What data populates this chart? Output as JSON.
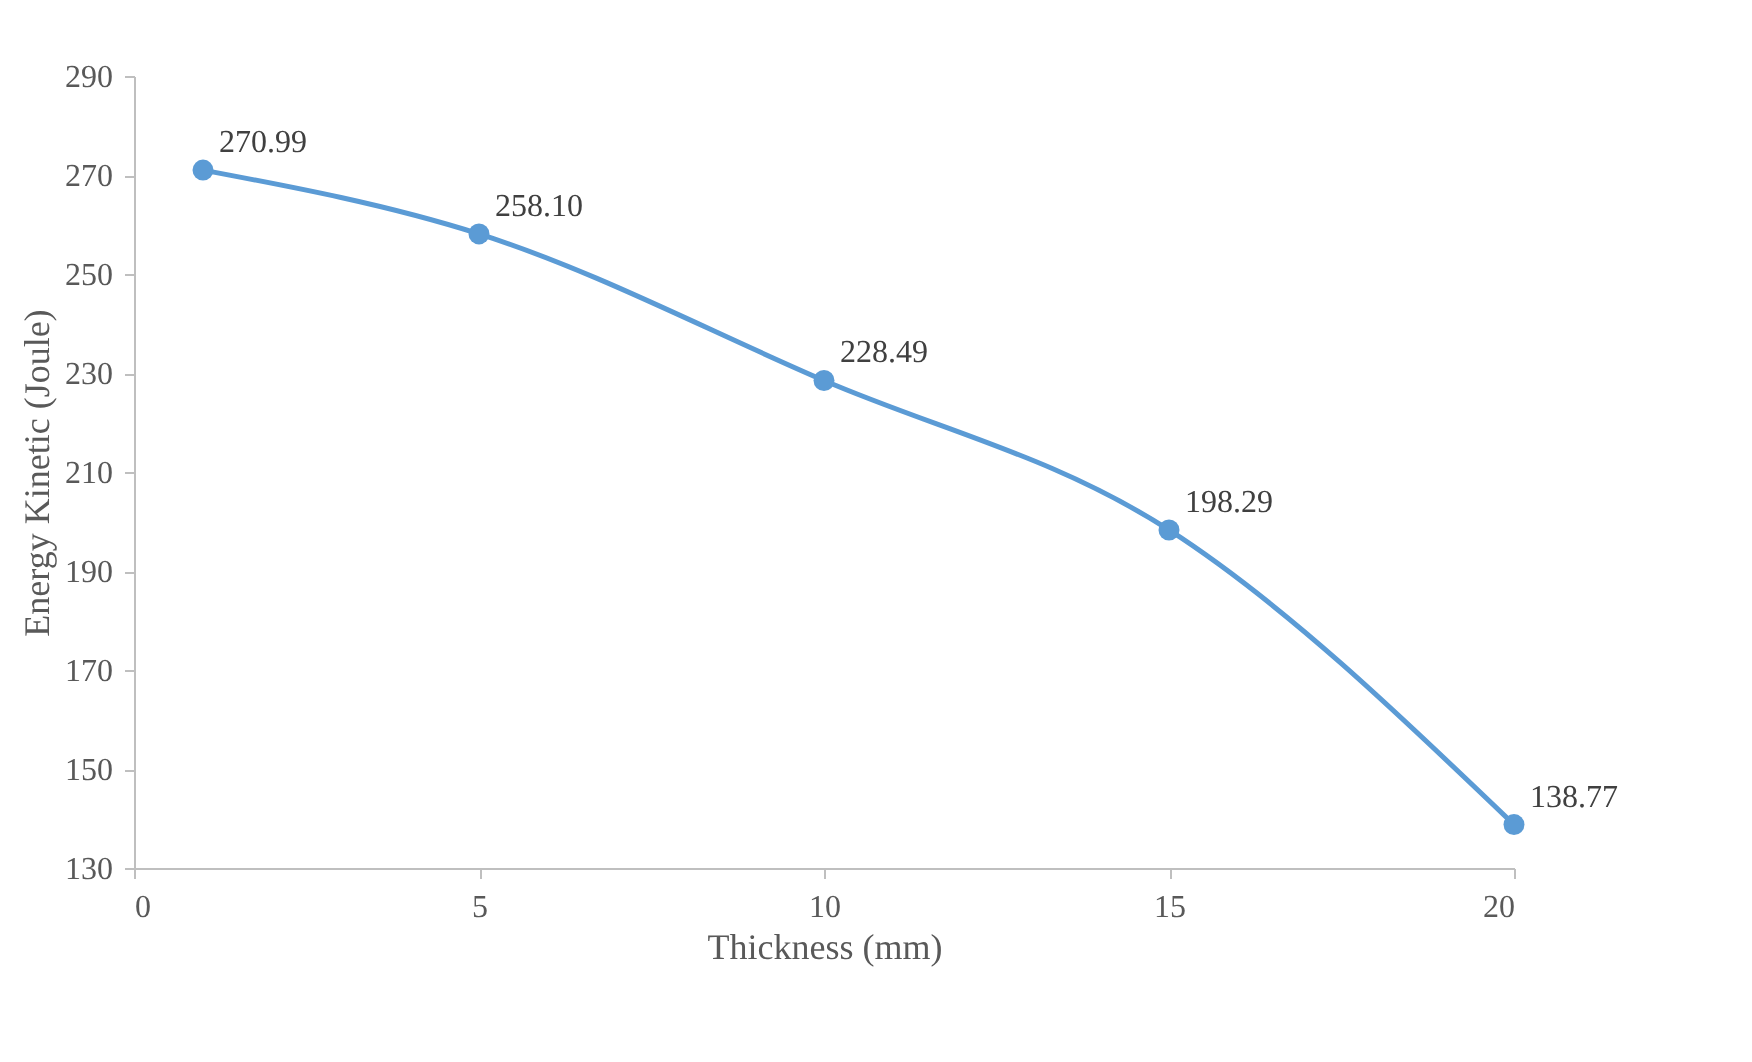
{
  "chart_data": {
    "type": "line",
    "xlabel": "Thickness (mm)",
    "ylabel": "Energy Kinetic (Joule)",
    "x": [
      1,
      5,
      10,
      15,
      20
    ],
    "series": [
      {
        "color": "#5b9bd5",
        "values": [
          270.99,
          258.1,
          228.49,
          198.29,
          138.77
        ],
        "value_labels": [
          "270.99",
          "258.10",
          "228.49",
          "198.29",
          "138.77"
        ]
      }
    ],
    "xlim": [
      0,
      20
    ],
    "xticks": [
      0,
      5,
      10,
      15,
      20
    ],
    "ylim": [
      130,
      290
    ],
    "yticks": [
      130,
      150,
      170,
      190,
      210,
      230,
      250,
      270,
      290
    ],
    "grid": false,
    "marker": "circle",
    "line_style": "solid"
  }
}
